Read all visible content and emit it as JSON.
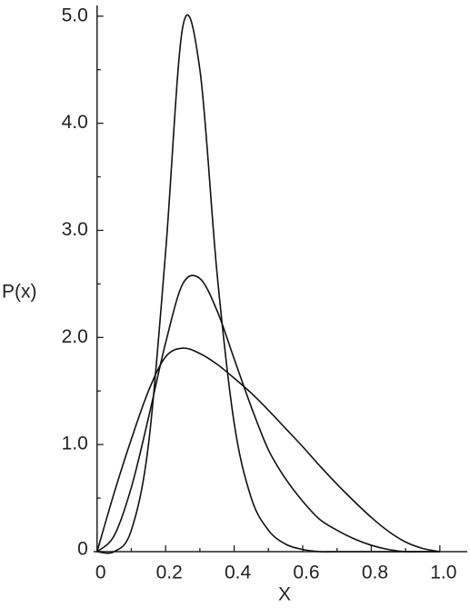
{
  "chart_data": {
    "type": "line",
    "xlabel": "X",
    "ylabel": "P(x)",
    "x": [
      0,
      0.05,
      0.1,
      0.15,
      0.2,
      0.25,
      0.3,
      0.35,
      0.4,
      0.45,
      0.5,
      0.55,
      0.6,
      0.65,
      0.7,
      0.75,
      0.8,
      0.85,
      0.9,
      0.95,
      1.0
    ],
    "series": [
      {
        "color": "#111111",
        "values": [
          0,
          0,
          0.2,
          1.0,
          2.8,
          4.9,
          4.5,
          2.6,
          1.2,
          0.5,
          0.2,
          0.07,
          0.02,
          0,
          0,
          0,
          0,
          0,
          0,
          0,
          0
        ]
      },
      {
        "color": "#111111",
        "values": [
          0,
          0.15,
          0.6,
          1.25,
          1.95,
          2.5,
          2.55,
          2.25,
          1.8,
          1.35,
          0.95,
          0.68,
          0.47,
          0.3,
          0.2,
          0.12,
          0.06,
          0.02,
          0,
          0,
          0
        ]
      },
      {
        "color": "#111111",
        "values": [
          0,
          0.55,
          1.05,
          1.5,
          1.82,
          1.9,
          1.85,
          1.75,
          1.62,
          1.48,
          1.32,
          1.15,
          0.98,
          0.8,
          0.63,
          0.47,
          0.32,
          0.19,
          0.09,
          0.03,
          0
        ]
      }
    ],
    "xlim": [
      -0.01,
      1.08
    ],
    "ylim": [
      0,
      5.1
    ],
    "xticks": [
      0,
      0.2,
      0.4,
      0.6,
      0.8,
      {
        "value": 1,
        "label": "1.0"
      }
    ],
    "xminorticks": [
      0.1,
      0.3,
      0.5,
      0.7,
      0.9
    ],
    "yticks": [
      0,
      {
        "value": 1,
        "label": "1.0"
      },
      {
        "value": 2,
        "label": "2.0"
      },
      {
        "value": 3,
        "label": "3.0"
      },
      {
        "value": 4,
        "label": "4.0"
      },
      {
        "value": 5,
        "label": "5.0"
      }
    ],
    "yminorticks": [
      0.5,
      1.5,
      2.5,
      3.5,
      4.5
    ],
    "grid": false
  }
}
